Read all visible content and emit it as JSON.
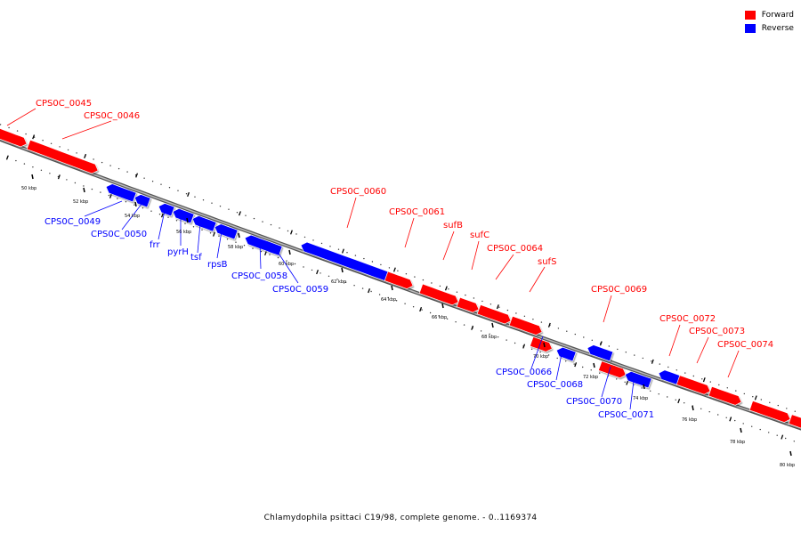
{
  "legend": [
    {
      "label": "Forward",
      "color": "#ff0000"
    },
    {
      "label": "Reverse",
      "color": "#0000ff"
    }
  ],
  "caption": "Chlamydophila psittaci C19/98, complete genome. - 0..1169374",
  "colors": {
    "forward": "#ff0000",
    "reverse": "#0000ff",
    "backbone": "#888888"
  },
  "ticks": [
    {
      "label": "50 kbp"
    },
    {
      "label": "52 kbp"
    },
    {
      "label": "54 kbp"
    },
    {
      "label": "56 kbp"
    },
    {
      "label": "58 kbp"
    },
    {
      "label": "60 kbp"
    },
    {
      "label": "62 kbp"
    },
    {
      "label": "64 kbp"
    },
    {
      "label": "66 kbp"
    },
    {
      "label": "68 kbp"
    },
    {
      "label": "70 kbp"
    },
    {
      "label": "72 kbp"
    },
    {
      "label": "74 kbp"
    },
    {
      "label": "76 kbp"
    },
    {
      "label": "78 kbp"
    },
    {
      "label": "80 kbp"
    }
  ],
  "genes": [
    {
      "name": "CPS0C_0045",
      "strand": "forward"
    },
    {
      "name": "CPS0C_0046",
      "strand": "forward"
    },
    {
      "name": "CPS0C_0049",
      "strand": "reverse"
    },
    {
      "name": "CPS0C_0050",
      "strand": "reverse"
    },
    {
      "name": "frr",
      "strand": "reverse"
    },
    {
      "name": "pyrH",
      "strand": "reverse"
    },
    {
      "name": "tsf",
      "strand": "reverse"
    },
    {
      "name": "rpsB",
      "strand": "reverse"
    },
    {
      "name": "CPS0C_0058",
      "strand": "reverse"
    },
    {
      "name": "CPS0C_0059",
      "strand": "reverse"
    },
    {
      "name": "CPS0C_0060",
      "strand": "forward"
    },
    {
      "name": "CPS0C_0061",
      "strand": "forward"
    },
    {
      "name": "sufB",
      "strand": "forward"
    },
    {
      "name": "sufC",
      "strand": "forward"
    },
    {
      "name": "CPS0C_0064",
      "strand": "forward"
    },
    {
      "name": "sufS",
      "strand": "forward"
    },
    {
      "name": "CPS0C_0066",
      "strand": "reverse"
    },
    {
      "name": "CPS0C_0068",
      "strand": "reverse"
    },
    {
      "name": "CPS0C_0069",
      "strand": "forward"
    },
    {
      "name": "CPS0C_0070",
      "strand": "reverse"
    },
    {
      "name": "CPS0C_0071",
      "strand": "reverse"
    },
    {
      "name": "CPS0C_0072",
      "strand": "forward"
    },
    {
      "name": "CPS0C_0073",
      "strand": "forward"
    },
    {
      "name": "CPS0C_0074",
      "strand": "forward"
    },
    {
      "name": "",
      "strand": "forward"
    },
    {
      "name": "",
      "strand": "forward"
    }
  ]
}
